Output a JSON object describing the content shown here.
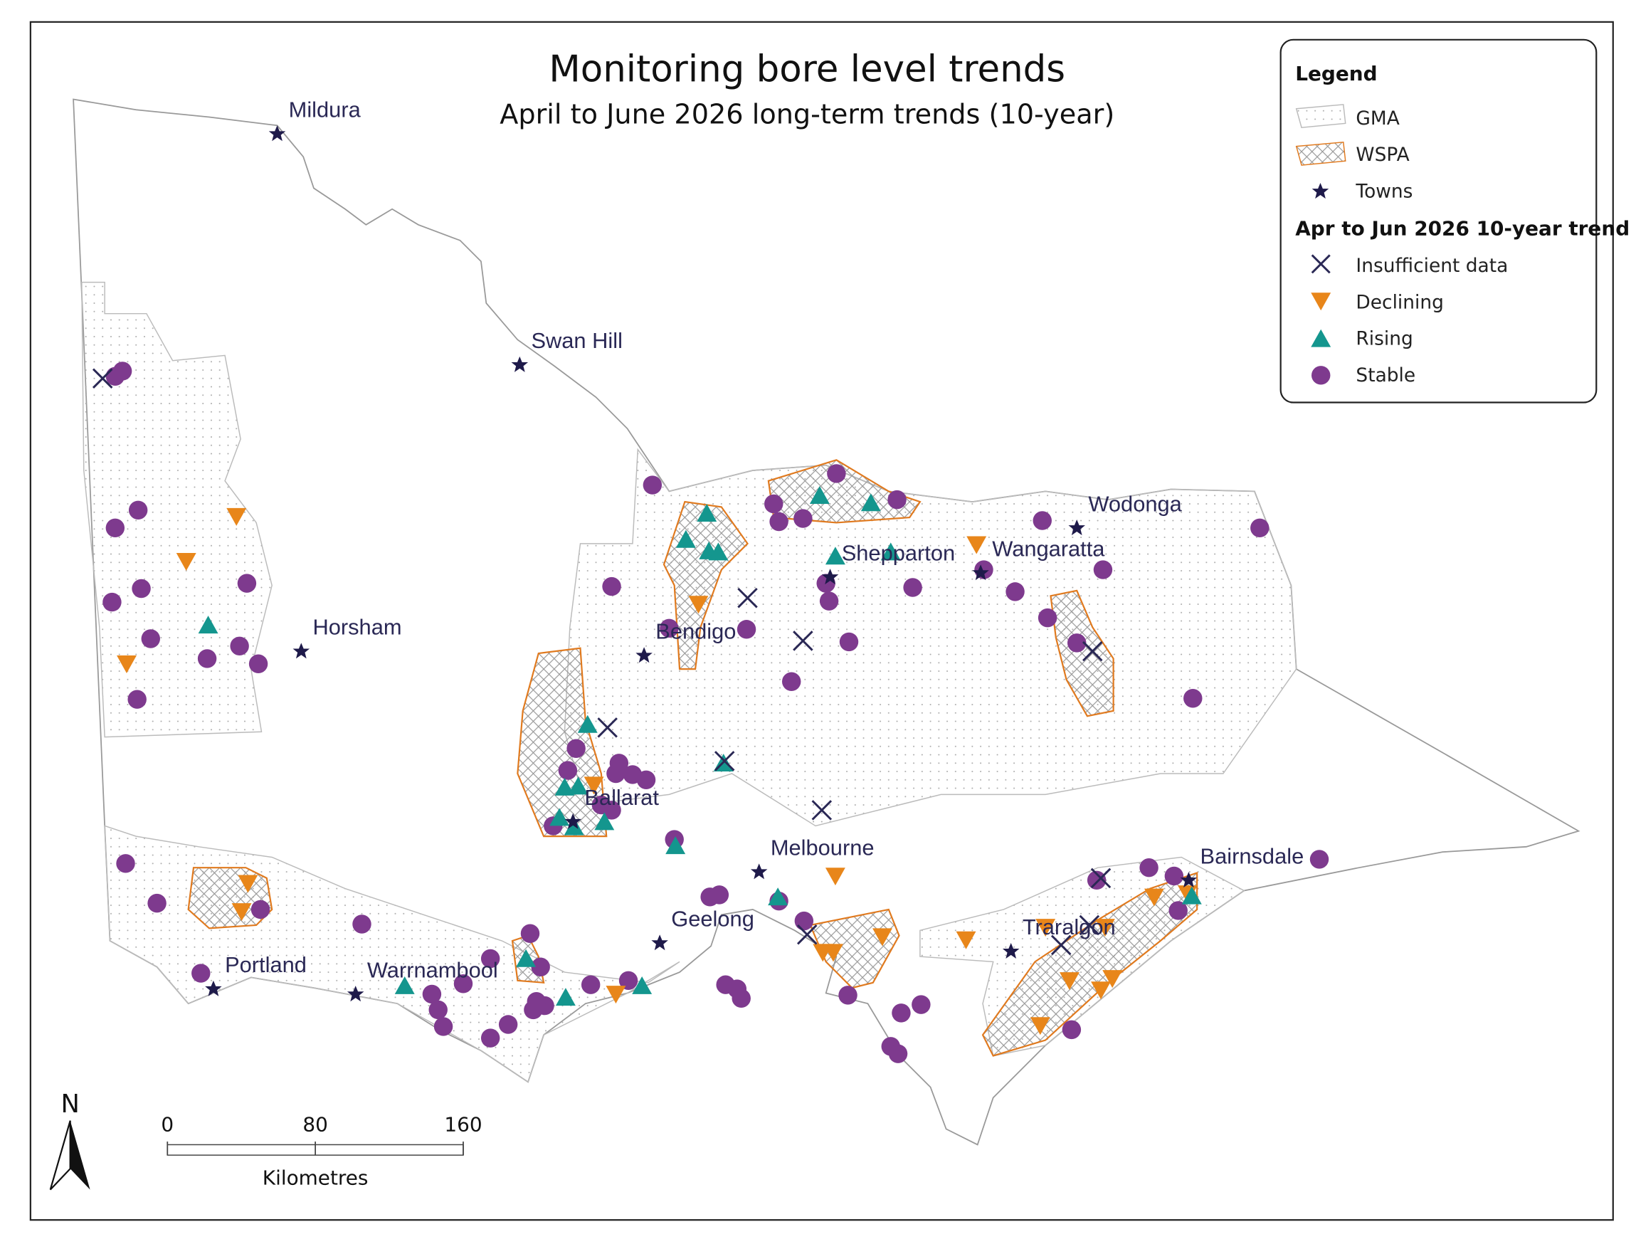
{
  "title": "Monitoring bore level trends",
  "subtitle": "April to June 2026 long-term trends (10-year)",
  "legend": {
    "title": "Legend",
    "items": [
      "GMA",
      "WSPA",
      "Towns"
    ],
    "trend_title": "Apr to Jun 2026 10-year trend",
    "trend_items": [
      "Insufficient data",
      "Declining",
      "Rising",
      "Stable"
    ]
  },
  "towns": [
    "Mildura",
    "Swan Hill",
    "Horsham",
    "Bendigo",
    "Shepparton",
    "Wangaratta",
    "Wodonga",
    "Ballarat",
    "Melbourne",
    "Geelong",
    "Traralgon",
    "Bairnsdale",
    "Portland",
    "Warrnambool"
  ],
  "scale_bar": {
    "ticks": [
      0,
      80,
      160
    ],
    "unit": "Kilometres"
  },
  "north": "N"
}
